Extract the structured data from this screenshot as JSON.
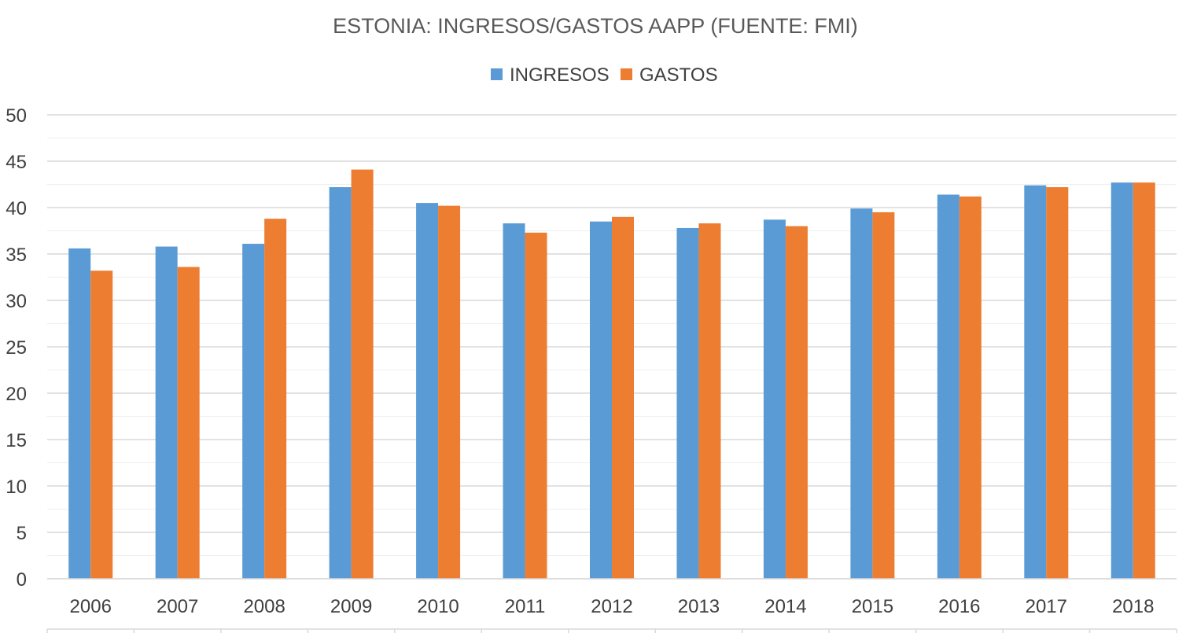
{
  "chart_data": {
    "type": "bar",
    "title": "ESTONIA: INGRESOS/GASTOS AAPP (FUENTE: FMI)",
    "xlabel": "",
    "ylabel": "",
    "ylim": [
      0,
      50
    ],
    "yticks": [
      0,
      5,
      10,
      15,
      20,
      25,
      30,
      35,
      40,
      45,
      50
    ],
    "minor_grid_step": 2.5,
    "grid": true,
    "legend_position": "top-center",
    "categories": [
      "2006",
      "2007",
      "2008",
      "2009",
      "2010",
      "2011",
      "2012",
      "2013",
      "2014",
      "2015",
      "2016",
      "2017",
      "2018"
    ],
    "series": [
      {
        "name": "INGRESOS",
        "color": "#5b9bd5",
        "values": [
          35.6,
          35.8,
          36.1,
          42.2,
          40.5,
          38.3,
          38.5,
          37.8,
          38.7,
          39.9,
          41.4,
          42.4,
          42.7
        ]
      },
      {
        "name": "GASTOS",
        "color": "#ed7d31",
        "values": [
          33.2,
          33.6,
          38.8,
          44.1,
          40.2,
          37.3,
          39.0,
          38.3,
          38.0,
          39.5,
          41.2,
          42.2,
          42.7
        ]
      }
    ]
  }
}
